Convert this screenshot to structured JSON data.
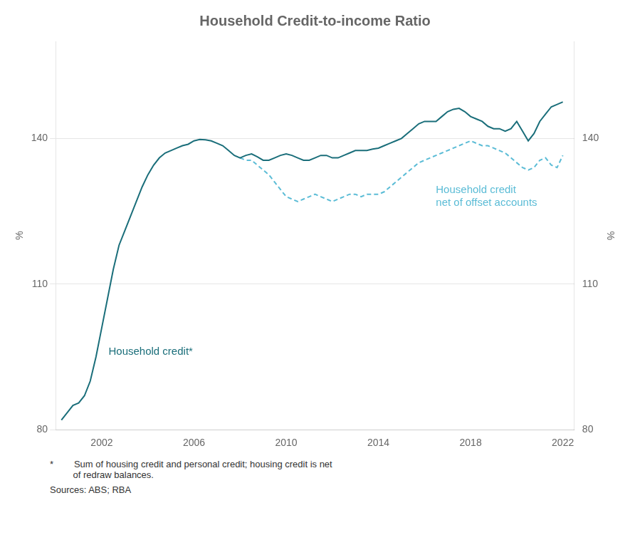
{
  "chart_data": {
    "type": "line",
    "title": "Household Credit-to-income Ratio",
    "ylabel": "%",
    "y2label": "%",
    "xlim": [
      2000,
      2022.5
    ],
    "xticks": [
      2002,
      2006,
      2010,
      2014,
      2018,
      2022
    ],
    "ylim": [
      80,
      160
    ],
    "yticks": [
      80,
      110,
      140
    ],
    "y2lim": [
      80,
      160
    ],
    "y2ticks": [
      80,
      110,
      140
    ],
    "grid": "y",
    "footnotes": [
      "*        Sum of housing credit and personal credit; housing credit is net\n         of redraw balances.",
      "Sources: ABS; RBA"
    ],
    "series": [
      {
        "name": "Household credit*",
        "color": "#1a6e7a",
        "line_style": "solid",
        "x": [
          2000.25,
          2000.5,
          2000.75,
          2001.0,
          2001.25,
          2001.5,
          2001.75,
          2002.0,
          2002.25,
          2002.5,
          2002.75,
          2003.0,
          2003.25,
          2003.5,
          2003.75,
          2004.0,
          2004.25,
          2004.5,
          2004.75,
          2005.0,
          2005.25,
          2005.5,
          2005.75,
          2006.0,
          2006.25,
          2006.5,
          2006.75,
          2007.0,
          2007.25,
          2007.5,
          2007.75,
          2008.0,
          2008.25,
          2008.5,
          2008.75,
          2009.0,
          2009.25,
          2009.5,
          2009.75,
          2010.0,
          2010.25,
          2010.5,
          2010.75,
          2011.0,
          2011.25,
          2011.5,
          2011.75,
          2012.0,
          2012.25,
          2012.5,
          2012.75,
          2013.0,
          2013.25,
          2013.5,
          2013.75,
          2014.0,
          2014.25,
          2014.5,
          2014.75,
          2015.0,
          2015.25,
          2015.5,
          2015.75,
          2016.0,
          2016.25,
          2016.5,
          2016.75,
          2017.0,
          2017.25,
          2017.5,
          2017.75,
          2018.0,
          2018.25,
          2018.5,
          2018.75,
          2019.0,
          2019.25,
          2019.5,
          2019.75,
          2020.0,
          2020.25,
          2020.5,
          2020.75,
          2021.0,
          2021.25,
          2021.5,
          2021.75,
          2022.0
        ],
        "values": [
          82.0,
          83.5,
          85.0,
          85.5,
          87.0,
          90.0,
          95.0,
          101.0,
          107.0,
          113.0,
          118.0,
          121.0,
          124.0,
          127.0,
          130.0,
          132.5,
          134.5,
          136.0,
          137.0,
          137.5,
          138.0,
          138.5,
          138.8,
          139.5,
          139.8,
          139.7,
          139.5,
          139.0,
          138.5,
          137.5,
          136.5,
          136.0,
          136.5,
          136.8,
          136.2,
          135.5,
          135.5,
          136.0,
          136.5,
          136.8,
          136.5,
          136.0,
          135.5,
          135.5,
          136.0,
          136.5,
          136.5,
          136.0,
          136.0,
          136.5,
          137.0,
          137.5,
          137.5,
          137.5,
          137.8,
          138.0,
          138.5,
          139.0,
          139.5,
          140.0,
          141.0,
          142.0,
          143.0,
          143.5,
          143.5,
          143.5,
          144.5,
          145.5,
          146.0,
          146.2,
          145.5,
          144.5,
          144.0,
          143.5,
          142.5,
          142.0,
          142.0,
          141.5,
          142.0,
          143.5,
          141.5,
          139.5,
          141.0,
          143.5,
          145.0,
          146.5,
          147.0,
          147.5
        ]
      },
      {
        "name": "Household credit\nnet of offset accounts",
        "color": "#5bbcd6",
        "line_style": "dashed",
        "x": [
          2008.0,
          2008.25,
          2008.5,
          2008.75,
          2009.0,
          2009.25,
          2009.5,
          2009.75,
          2010.0,
          2010.25,
          2010.5,
          2010.75,
          2011.0,
          2011.25,
          2011.5,
          2011.75,
          2012.0,
          2012.25,
          2012.5,
          2012.75,
          2013.0,
          2013.25,
          2013.5,
          2013.75,
          2014.0,
          2014.25,
          2014.5,
          2014.75,
          2015.0,
          2015.25,
          2015.5,
          2015.75,
          2016.0,
          2016.25,
          2016.5,
          2016.75,
          2017.0,
          2017.25,
          2017.5,
          2017.75,
          2018.0,
          2018.25,
          2018.5,
          2018.75,
          2019.0,
          2019.25,
          2019.5,
          2019.75,
          2020.0,
          2020.25,
          2020.5,
          2020.75,
          2021.0,
          2021.25,
          2021.5,
          2021.75,
          2022.0
        ],
        "values": [
          136.0,
          135.5,
          135.5,
          134.5,
          133.5,
          132.5,
          131.0,
          129.5,
          128.0,
          127.5,
          127.0,
          127.5,
          128.0,
          128.5,
          128.0,
          127.5,
          127.0,
          127.5,
          128.0,
          128.5,
          128.5,
          128.0,
          128.5,
          128.5,
          128.5,
          129.0,
          130.0,
          131.0,
          132.0,
          133.0,
          134.0,
          135.0,
          135.5,
          136.0,
          136.5,
          137.0,
          137.5,
          138.0,
          138.5,
          139.0,
          139.5,
          139.0,
          138.5,
          138.5,
          138.0,
          137.5,
          137.0,
          136.0,
          135.0,
          134.0,
          133.5,
          134.0,
          135.5,
          136.0,
          134.5,
          134.0,
          136.5
        ]
      }
    ]
  }
}
